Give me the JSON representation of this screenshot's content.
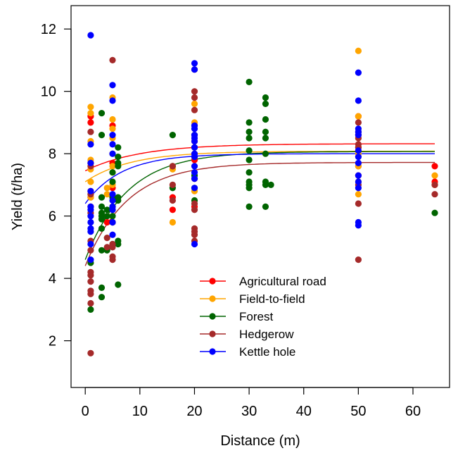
{
  "chart_data": {
    "type": "scatter",
    "xlabel": "Distance (m)",
    "ylabel": "Yield (t/ha)",
    "xlim": [
      -2.6,
      66.7
    ],
    "ylim": [
      0.5,
      12.75
    ],
    "xticks": [
      0,
      10,
      20,
      30,
      40,
      50,
      60
    ],
    "yticks": [
      2,
      4,
      6,
      8,
      10,
      12
    ],
    "grid": false,
    "legend_position": "bottom-center",
    "series": [
      {
        "name": "Agricultural road",
        "color": "#ff0000",
        "curve": {
          "asymptote": 8.32,
          "start": 7.45,
          "rate": 0.1
        },
        "points": [
          [
            1,
            9.2
          ],
          [
            1,
            9.0
          ],
          [
            1,
            7.7
          ],
          [
            1,
            6.8
          ],
          [
            1,
            6.6
          ],
          [
            1,
            6.3
          ],
          [
            4,
            5.8
          ],
          [
            5,
            8.9
          ],
          [
            5,
            7.7
          ],
          [
            5,
            6.9
          ],
          [
            5,
            6.3
          ],
          [
            5,
            5.8
          ],
          [
            16,
            6.6
          ],
          [
            16,
            6.2
          ],
          [
            20,
            8.4
          ],
          [
            20,
            7.8
          ],
          [
            20,
            7.2
          ],
          [
            20,
            6.3
          ],
          [
            50,
            9.2
          ],
          [
            50,
            8.6
          ],
          [
            50,
            8.2
          ],
          [
            50,
            7.6
          ],
          [
            50,
            7.3
          ],
          [
            64,
            7.6
          ],
          [
            64,
            7.1
          ],
          [
            64,
            7.0
          ]
        ]
      },
      {
        "name": "Field-to-field",
        "color": "#ffa500",
        "curve": {
          "asymptote": 8.08,
          "start": 7.1,
          "rate": 0.12
        },
        "points": [
          [
            1,
            9.5
          ],
          [
            1,
            9.3
          ],
          [
            1,
            8.4
          ],
          [
            1,
            7.8
          ],
          [
            1,
            7.5
          ],
          [
            1,
            7.1
          ],
          [
            1,
            6.6
          ],
          [
            4,
            6.7
          ],
          [
            4,
            6.9
          ],
          [
            5,
            9.8
          ],
          [
            5,
            9.1
          ],
          [
            5,
            8.8
          ],
          [
            5,
            8.5
          ],
          [
            5,
            8.0
          ],
          [
            5,
            7.6
          ],
          [
            5,
            7.4
          ],
          [
            5,
            7.0
          ],
          [
            5,
            6.6
          ],
          [
            16,
            7.6
          ],
          [
            16,
            7.5
          ],
          [
            16,
            5.8
          ],
          [
            20,
            9.6
          ],
          [
            20,
            9.0
          ],
          [
            20,
            8.2
          ],
          [
            20,
            7.9
          ],
          [
            20,
            7.6
          ],
          [
            20,
            6.8
          ],
          [
            50,
            11.3
          ],
          [
            50,
            9.2
          ],
          [
            50,
            8.5
          ],
          [
            50,
            8.0
          ],
          [
            50,
            7.6
          ],
          [
            50,
            7.1
          ],
          [
            50,
            6.7
          ],
          [
            64,
            7.3
          ],
          [
            64,
            7.0
          ]
        ]
      },
      {
        "name": "Forest",
        "color": "#006400",
        "curve": {
          "asymptote": 8.07,
          "start": 4.6,
          "rate": 0.13
        },
        "points": [
          [
            1,
            4.5
          ],
          [
            1,
            3.0
          ],
          [
            3,
            9.3
          ],
          [
            3,
            8.6
          ],
          [
            3,
            6.6
          ],
          [
            3,
            6.3
          ],
          [
            3,
            6.1
          ],
          [
            3,
            6.0
          ],
          [
            3,
            5.9
          ],
          [
            3,
            5.6
          ],
          [
            3,
            4.9
          ],
          [
            3,
            3.7
          ],
          [
            3,
            3.4
          ],
          [
            4,
            6.2
          ],
          [
            4,
            6.0
          ],
          [
            4,
            4.9
          ],
          [
            5,
            7.4
          ],
          [
            5,
            7.1
          ],
          [
            5,
            6.6
          ],
          [
            5,
            6.3
          ],
          [
            5,
            6.0
          ],
          [
            5,
            5.8
          ],
          [
            5,
            5.1
          ],
          [
            6,
            8.2
          ],
          [
            6,
            7.9
          ],
          [
            6,
            7.7
          ],
          [
            6,
            7.6
          ],
          [
            6,
            6.6
          ],
          [
            6,
            6.5
          ],
          [
            6,
            5.2
          ],
          [
            6,
            5.1
          ],
          [
            6,
            3.8
          ],
          [
            16,
            8.6
          ],
          [
            16,
            7.6
          ],
          [
            16,
            6.9
          ],
          [
            20,
            8.6
          ],
          [
            20,
            8.2
          ],
          [
            20,
            7.9
          ],
          [
            20,
            7.3
          ],
          [
            20,
            6.9
          ],
          [
            20,
            6.5
          ],
          [
            30,
            10.3
          ],
          [
            30,
            9.0
          ],
          [
            30,
            8.7
          ],
          [
            30,
            8.5
          ],
          [
            30,
            8.1
          ],
          [
            30,
            7.8
          ],
          [
            30,
            7.4
          ],
          [
            30,
            7.1
          ],
          [
            30,
            7.0
          ],
          [
            30,
            6.9
          ],
          [
            30,
            6.3
          ],
          [
            33,
            9.8
          ],
          [
            33,
            9.6
          ],
          [
            33,
            9.1
          ],
          [
            33,
            8.7
          ],
          [
            33,
            8.5
          ],
          [
            33,
            8.0
          ],
          [
            33,
            7.1
          ],
          [
            33,
            7.0
          ],
          [
            33,
            6.3
          ],
          [
            34,
            7.0
          ],
          [
            64,
            6.1
          ]
        ]
      },
      {
        "name": "Hedgerow",
        "color": "#a52a2a",
        "curve": {
          "asymptote": 7.72,
          "start": 4.4,
          "rate": 0.13
        },
        "points": [
          [
            1,
            8.7
          ],
          [
            1,
            7.6
          ],
          [
            1,
            6.7
          ],
          [
            1,
            6.1
          ],
          [
            1,
            5.2
          ],
          [
            1,
            4.9
          ],
          [
            1,
            4.2
          ],
          [
            1,
            4.1
          ],
          [
            1,
            3.9
          ],
          [
            1,
            3.6
          ],
          [
            1,
            3.5
          ],
          [
            1,
            3.2
          ],
          [
            1,
            1.6
          ],
          [
            4,
            5.3
          ],
          [
            4,
            5.0
          ],
          [
            5,
            11.0
          ],
          [
            5,
            6.2
          ],
          [
            5,
            5.8
          ],
          [
            5,
            5.1
          ],
          [
            5,
            5.0
          ],
          [
            5,
            4.7
          ],
          [
            5,
            4.6
          ],
          [
            16,
            7.6
          ],
          [
            16,
            7.0
          ],
          [
            16,
            6.5
          ],
          [
            20,
            10.7
          ],
          [
            20,
            10.0
          ],
          [
            20,
            9.8
          ],
          [
            20,
            9.4
          ],
          [
            20,
            8.9
          ],
          [
            20,
            8.0
          ],
          [
            20,
            6.4
          ],
          [
            20,
            6.2
          ],
          [
            20,
            5.6
          ],
          [
            20,
            5.5
          ],
          [
            20,
            5.4
          ],
          [
            20,
            5.2
          ],
          [
            50,
            9.0
          ],
          [
            50,
            8.7
          ],
          [
            50,
            8.5
          ],
          [
            50,
            8.3
          ],
          [
            50,
            8.2
          ],
          [
            50,
            7.0
          ],
          [
            50,
            6.4
          ],
          [
            50,
            4.6
          ],
          [
            64,
            7.0
          ],
          [
            64,
            6.7
          ]
        ]
      },
      {
        "name": "Kettle hole",
        "color": "#0000ff",
        "curve": {
          "asymptote": 8.0,
          "start": 6.4,
          "rate": 0.15
        },
        "points": [
          [
            1,
            11.8
          ],
          [
            1,
            8.3
          ],
          [
            1,
            7.7
          ],
          [
            1,
            6.8
          ],
          [
            1,
            6.3
          ],
          [
            1,
            6.2
          ],
          [
            1,
            6.0
          ],
          [
            1,
            5.8
          ],
          [
            1,
            5.6
          ],
          [
            1,
            5.5
          ],
          [
            1,
            5.1
          ],
          [
            1,
            4.6
          ],
          [
            5,
            10.2
          ],
          [
            5,
            9.7
          ],
          [
            5,
            8.6
          ],
          [
            5,
            8.3
          ],
          [
            5,
            8.0
          ],
          [
            5,
            6.7
          ],
          [
            5,
            6.5
          ],
          [
            5,
            6.3
          ],
          [
            5,
            6.2
          ],
          [
            5,
            5.8
          ],
          [
            5,
            5.4
          ],
          [
            20,
            10.9
          ],
          [
            20,
            10.7
          ],
          [
            20,
            8.9
          ],
          [
            20,
            8.8
          ],
          [
            20,
            8.6
          ],
          [
            20,
            8.5
          ],
          [
            20,
            8.4
          ],
          [
            20,
            8.2
          ],
          [
            20,
            8.0
          ],
          [
            20,
            7.9
          ],
          [
            20,
            7.6
          ],
          [
            20,
            7.4
          ],
          [
            20,
            7.2
          ],
          [
            20,
            6.9
          ],
          [
            20,
            5.1
          ],
          [
            50,
            10.6
          ],
          [
            50,
            9.7
          ],
          [
            50,
            8.8
          ],
          [
            50,
            8.7
          ],
          [
            50,
            8.6
          ],
          [
            50,
            8.1
          ],
          [
            50,
            7.9
          ],
          [
            50,
            7.7
          ],
          [
            50,
            7.3
          ],
          [
            50,
            7.1
          ],
          [
            50,
            6.9
          ],
          [
            50,
            5.8
          ],
          [
            50,
            5.7
          ]
        ]
      }
    ]
  }
}
